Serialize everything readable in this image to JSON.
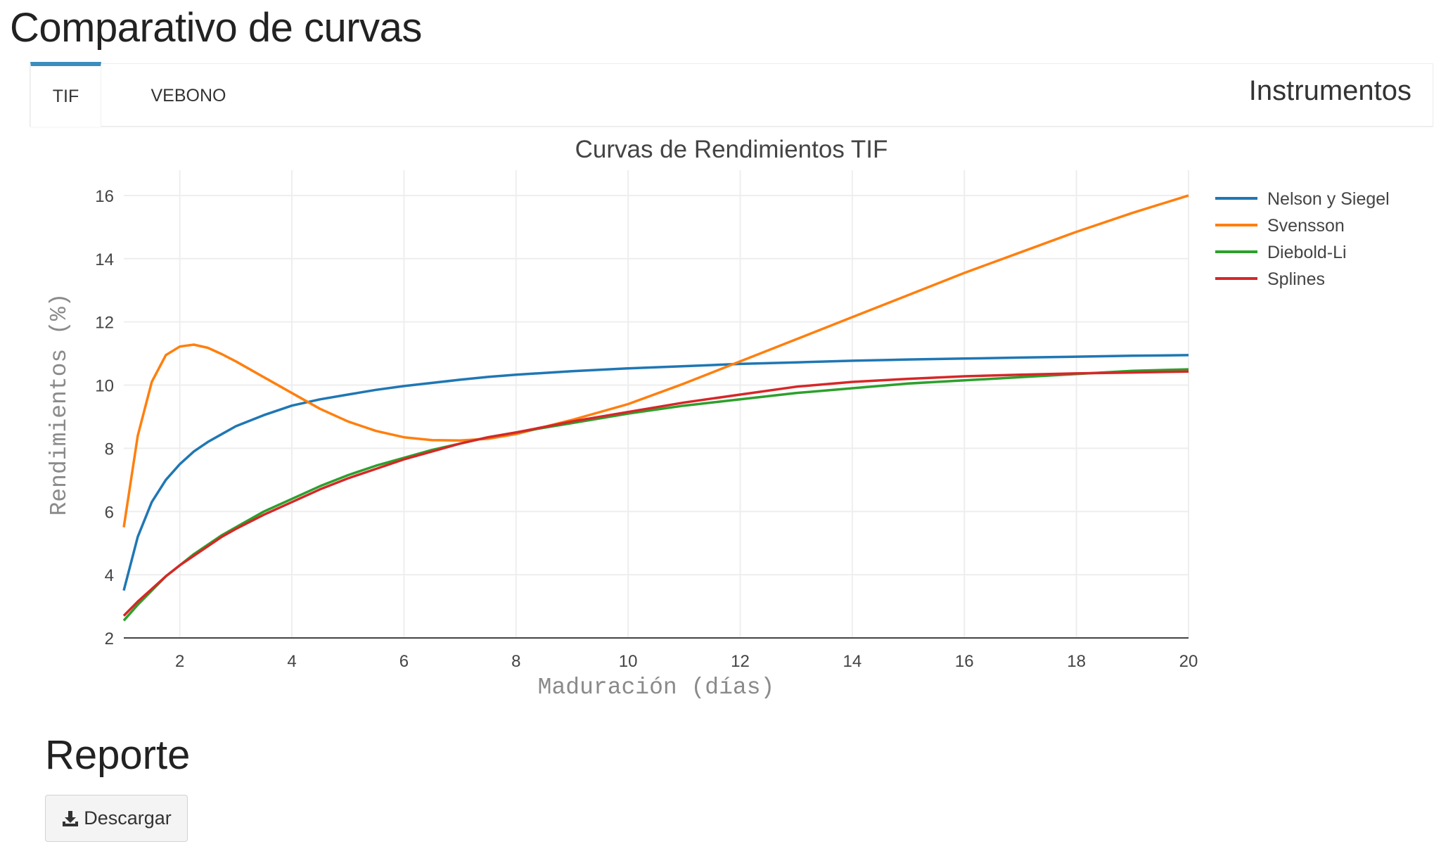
{
  "page": {
    "title": "Comparativo de curvas"
  },
  "tabs": [
    {
      "label": "TIF",
      "active": true
    },
    {
      "label": "VEBONO",
      "active": false
    }
  ],
  "panel": {
    "header": "Instrumentos"
  },
  "report": {
    "title": "Reporte",
    "download_label": "Descargar",
    "download_icon": "download-icon"
  },
  "chart_data": {
    "type": "line",
    "title": "Curvas de Rendimientos TIF",
    "xlabel": "Maduración (días)",
    "ylabel": "Rendimientos (%)",
    "xlim": [
      1,
      20
    ],
    "ylim": [
      2,
      16.8
    ],
    "xticks": [
      2,
      4,
      6,
      8,
      10,
      12,
      14,
      16,
      18,
      20
    ],
    "yticks": [
      2,
      4,
      6,
      8,
      10,
      12,
      14,
      16
    ],
    "grid": true,
    "legend_position": "top-right",
    "x": [
      1,
      1.25,
      1.5,
      1.75,
      2,
      2.25,
      2.5,
      2.75,
      3,
      3.5,
      4,
      4.5,
      5,
      5.5,
      6,
      6.5,
      7,
      7.5,
      8,
      9,
      10,
      11,
      12,
      13,
      14,
      15,
      16,
      17,
      18,
      19,
      20
    ],
    "series": [
      {
        "name": "Nelson y Siegel",
        "color": "#1f77b4",
        "values": [
          3.5,
          5.2,
          6.3,
          7.0,
          7.5,
          7.9,
          8.2,
          8.45,
          8.7,
          9.05,
          9.35,
          9.55,
          9.7,
          9.85,
          9.97,
          10.07,
          10.17,
          10.26,
          10.33,
          10.44,
          10.53,
          10.6,
          10.67,
          10.72,
          10.77,
          10.81,
          10.84,
          10.87,
          10.9,
          10.93,
          10.95
        ]
      },
      {
        "name": "Svensson",
        "color": "#ff7f0e",
        "values": [
          5.5,
          8.4,
          10.1,
          10.95,
          11.22,
          11.28,
          11.18,
          10.98,
          10.75,
          10.25,
          9.75,
          9.25,
          8.85,
          8.55,
          8.35,
          8.26,
          8.25,
          8.3,
          8.45,
          8.9,
          9.4,
          10.05,
          10.75,
          11.45,
          12.15,
          12.85,
          13.55,
          14.2,
          14.85,
          15.45,
          16.0
        ]
      },
      {
        "name": "Diebold-Li",
        "color": "#2ca02c",
        "values": [
          2.55,
          3.05,
          3.5,
          3.95,
          4.3,
          4.65,
          4.95,
          5.25,
          5.5,
          6.0,
          6.4,
          6.8,
          7.15,
          7.45,
          7.7,
          7.95,
          8.15,
          8.35,
          8.5,
          8.8,
          9.1,
          9.35,
          9.55,
          9.75,
          9.9,
          10.05,
          10.15,
          10.25,
          10.35,
          10.45,
          10.5
        ]
      },
      {
        "name": "Splines",
        "color": "#d62728",
        "values": [
          2.7,
          3.15,
          3.55,
          3.95,
          4.3,
          4.6,
          4.9,
          5.2,
          5.45,
          5.9,
          6.3,
          6.7,
          7.05,
          7.35,
          7.65,
          7.9,
          8.15,
          8.35,
          8.5,
          8.85,
          9.15,
          9.45,
          9.7,
          9.95,
          10.1,
          10.2,
          10.28,
          10.33,
          10.37,
          10.4,
          10.43
        ]
      }
    ]
  }
}
